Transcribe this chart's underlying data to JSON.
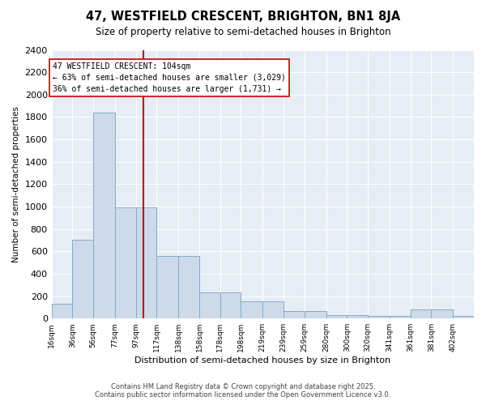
{
  "title": "47, WESTFIELD CRESCENT, BRIGHTON, BN1 8JA",
  "subtitle": "Size of property relative to semi-detached houses in Brighton",
  "xlabel": "Distribution of semi-detached houses by size in Brighton",
  "ylabel": "Number of semi-detached properties",
  "bar_color": "#ccdaea",
  "bar_edge_color": "#88aac8",
  "background_color": "#e6edf5",
  "grid_color": "#ffffff",
  "vline_color": "#cc0000",
  "vline_x": 104,
  "annotation_line1": "47 WESTFIELD CRESCENT: 104sqm",
  "annotation_line2": "← 63% of semi-detached houses are smaller (3,029)",
  "annotation_line3": "36% of semi-detached houses are larger (1,731) →",
  "footer_text": "Contains HM Land Registry data © Crown copyright and database right 2025.\nContains public sector information licensed under the Open Government Licence v3.0.",
  "bins": [
    16,
    36,
    56,
    77,
    97,
    117,
    138,
    158,
    178,
    198,
    219,
    239,
    259,
    280,
    300,
    320,
    341,
    361,
    381,
    402,
    422
  ],
  "counts": [
    130,
    700,
    1840,
    990,
    990,
    560,
    560,
    230,
    230,
    155,
    155,
    70,
    70,
    30,
    30,
    20,
    20,
    80,
    80,
    20,
    5
  ],
  "ylim": [
    0,
    2400
  ],
  "yticks": [
    0,
    200,
    400,
    600,
    800,
    1000,
    1200,
    1400,
    1600,
    1800,
    2000,
    2200,
    2400
  ]
}
